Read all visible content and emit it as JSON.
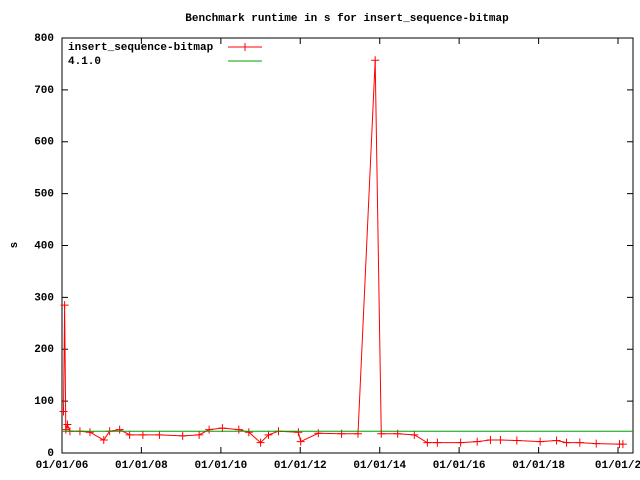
{
  "chart_data": {
    "type": "line",
    "title": "Benchmark runtime in s for insert_sequence-bitmap",
    "y_label": "s",
    "xlim": [
      "2006-01-01",
      "2020-05-18"
    ],
    "xticks": [
      {
        "value": "2006-01-01",
        "label": "01/01/06"
      },
      {
        "value": "2008-01-01",
        "label": "01/01/08"
      },
      {
        "value": "2010-01-01",
        "label": "01/01/10"
      },
      {
        "value": "2012-01-01",
        "label": "01/01/12"
      },
      {
        "value": "2014-01-01",
        "label": "01/01/14"
      },
      {
        "value": "2016-01-01",
        "label": "01/01/16"
      },
      {
        "value": "2018-01-01",
        "label": "01/01/18"
      },
      {
        "value": "2020-01-01",
        "label": "01/01/2"
      }
    ],
    "ylim": [
      0,
      800
    ],
    "yticks": [
      0,
      100,
      200,
      300,
      400,
      500,
      600,
      700,
      800
    ],
    "grid": false,
    "legend": "top-left",
    "series": [
      {
        "name": "insert_sequence-bitmap",
        "color": "#ff0000",
        "markers": true,
        "x": [
          "2006-01-15",
          "2006-01-25",
          "2006-02-05",
          "2006-02-20",
          "2006-03-15",
          "2006-06-15",
          "2006-09-15",
          "2007-01-20",
          "2007-03-15",
          "2007-06-15",
          "2007-09-15",
          "2008-01-15",
          "2008-06-15",
          "2009-01-15",
          "2009-06-15",
          "2009-09-15",
          "2010-01-15",
          "2010-06-15",
          "2010-09-15",
          "2011-01-01",
          "2011-03-15",
          "2011-06-15",
          "2011-12-15",
          "2012-01-05",
          "2012-06-15",
          "2013-01-15",
          "2013-06-15",
          "2013-11-20",
          "2014-01-15",
          "2014-06-15",
          "2014-11-15",
          "2015-03-15",
          "2015-06-15",
          "2016-01-15",
          "2016-06-15",
          "2016-10-15",
          "2017-01-15",
          "2017-06-15",
          "2018-01-15",
          "2018-06-15",
          "2018-09-15",
          "2019-01-15",
          "2019-06-15",
          "2020-01-15",
          "2020-02-15"
        ],
        "values": [
          80,
          285,
          45,
          55,
          42,
          42,
          40,
          25,
          42,
          45,
          35,
          35,
          35,
          33,
          35,
          45,
          48,
          45,
          40,
          20,
          35,
          42,
          40,
          22,
          38,
          37,
          37,
          757,
          37,
          37,
          35,
          20,
          20,
          20,
          22,
          25,
          25,
          24,
          22,
          24,
          20,
          20,
          18,
          17,
          17
        ]
      },
      {
        "name": "4.1.0",
        "color": "#00a000",
        "markers": false,
        "x": [
          "2006-01-01",
          "2020-05-18"
        ],
        "values": [
          42,
          42
        ]
      }
    ]
  }
}
